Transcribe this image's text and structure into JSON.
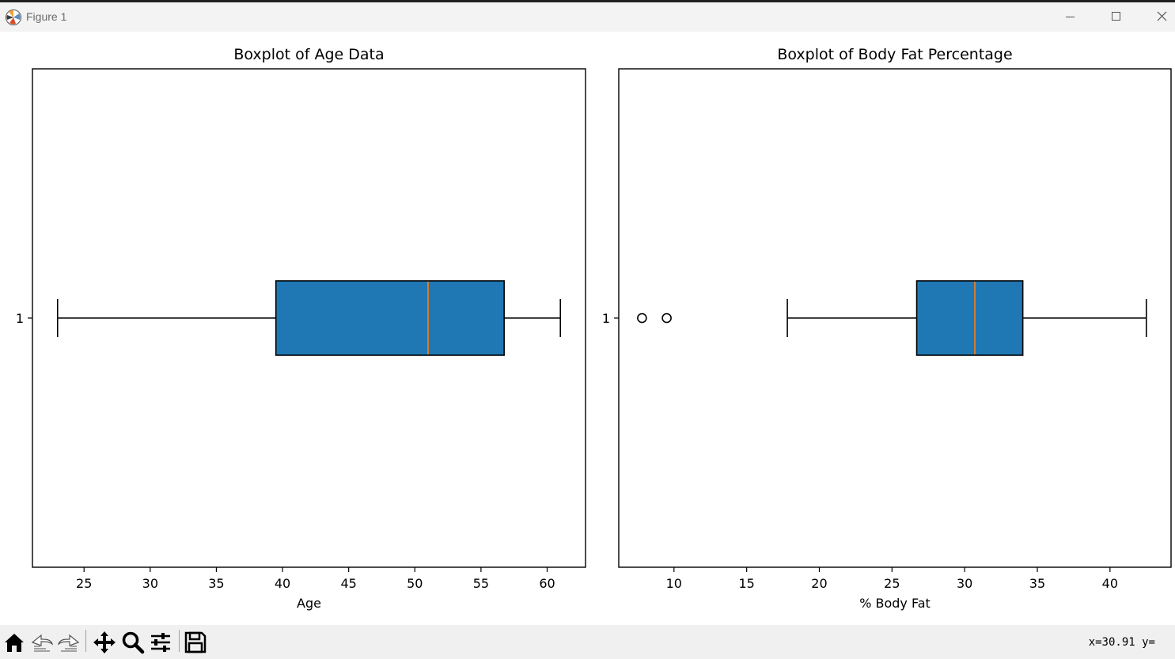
{
  "window": {
    "title": "Figure 1",
    "icons": [
      "matplotlib-icon",
      "minimize-icon",
      "maximize-icon",
      "close-icon"
    ]
  },
  "figure": {
    "axes_color": "#000000",
    "box_color": "#1f77b4",
    "median_color": "#ff7f0e"
  },
  "chart_data": [
    {
      "type": "boxplot",
      "orientation": "horizontal",
      "title": "Boxplot of Age Data",
      "xlabel": "Age",
      "ylabel": "",
      "xlim": [
        21.1,
        62.9
      ],
      "xticks": [
        25,
        30,
        35,
        40,
        45,
        50,
        55,
        60
      ],
      "yticks": [
        "1"
      ],
      "grid": false,
      "boxes": [
        {
          "label": "1",
          "whisker_low": 23,
          "q1": 39.5,
          "median": 51,
          "q3": 56.75,
          "whisker_high": 61,
          "outliers": []
        }
      ]
    },
    {
      "type": "boxplot",
      "orientation": "horizontal",
      "title": "Boxplot of Body Fat Percentage",
      "xlabel": "% Body Fat",
      "ylabel": "",
      "xlim": [
        6.2,
        44.2
      ],
      "xticks": [
        10,
        15,
        20,
        25,
        30,
        35,
        40
      ],
      "yticks": [
        "1"
      ],
      "grid": false,
      "boxes": [
        {
          "label": "1",
          "whisker_low": 17.8,
          "q1": 26.7,
          "median": 30.7,
          "q3": 34,
          "whisker_high": 42.5,
          "outliers": [
            7.8,
            9.5
          ]
        }
      ]
    }
  ],
  "toolbar": {
    "buttons": [
      "home-icon",
      "back-icon",
      "forward-icon",
      "pan-icon",
      "zoom-icon",
      "configure-icon",
      "save-icon"
    ],
    "coordinates": "x=30.91 y="
  }
}
